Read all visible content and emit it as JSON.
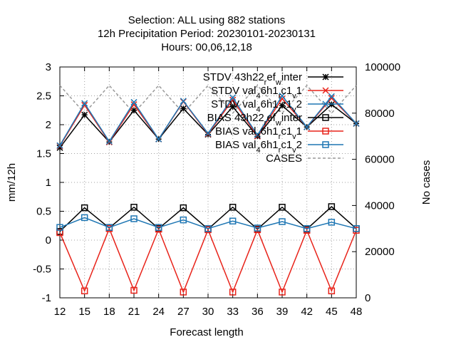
{
  "chart_data": {
    "type": "line",
    "title_lines": [
      "Selection: ALL using    882 stations",
      "12h Precipitation    Period: 20230101-20230131",
      "Hours:  00,06,12,18"
    ],
    "xlabel": "Forecast length",
    "ylabel": "mm/12h",
    "y2label": "No cases",
    "x": [
      12,
      15,
      18,
      21,
      24,
      27,
      30,
      33,
      36,
      39,
      42,
      45,
      48
    ],
    "xlim": [
      12,
      48
    ],
    "ylim": [
      -1,
      3
    ],
    "y2lim": [
      0,
      100000
    ],
    "x_ticks": [
      "12",
      "15",
      "18",
      "21",
      "24",
      "27",
      "30",
      "33",
      "36",
      "39",
      "42",
      "45",
      "48"
    ],
    "y_ticks": [
      "-1",
      "-0.5",
      "0",
      "0.5",
      "1",
      "1.5",
      "2",
      "2.5",
      "3"
    ],
    "y2_ticks": [
      "0",
      "20000",
      "40000",
      "60000",
      "80000",
      "100000"
    ],
    "grid": true,
    "legend_position": "top-right",
    "series": [
      {
        "legend_parts": [
          "STDV 43h22",
          "r",
          "ef",
          "w",
          "inter"
        ],
        "marker": "star",
        "color": "#000000",
        "axis": "y1",
        "values": [
          1.6,
          2.17,
          1.7,
          2.25,
          1.75,
          2.28,
          1.83,
          2.31,
          1.8,
          2.33,
          1.96,
          2.35,
          2.02
        ]
      },
      {
        "legend_parts": [
          "STDV val",
          "4",
          "6h1",
          "r",
          "c1",
          "v",
          "1"
        ],
        "marker": "x",
        "color": "#e8231a",
        "axis": "y1",
        "values": [
          1.63,
          2.34,
          1.7,
          2.35,
          1.75,
          2.4,
          1.84,
          2.43,
          1.8,
          2.45,
          1.96,
          2.46,
          2.02
        ]
      },
      {
        "legend_parts": [
          "STDV val",
          "4",
          "6h1",
          "r",
          "c1",
          "v",
          "2"
        ],
        "marker": "x",
        "color": "#1f77b4",
        "axis": "y1",
        "values": [
          1.64,
          2.37,
          1.71,
          2.39,
          1.75,
          2.41,
          1.85,
          2.47,
          1.82,
          2.5,
          1.96,
          2.49,
          2.02
        ]
      },
      {
        "legend_parts": [
          "BIAS 43h22",
          "r",
          "ef",
          "w",
          "inter"
        ],
        "marker": "square",
        "color": "#000000",
        "axis": "y1",
        "values": [
          0.15,
          0.56,
          0.21,
          0.57,
          0.2,
          0.56,
          0.19,
          0.57,
          0.19,
          0.57,
          0.19,
          0.58,
          0.2
        ]
      },
      {
        "legend_parts": [
          "BIAS val",
          "4",
          "6h1",
          "r",
          "c1",
          "v",
          "1"
        ],
        "marker": "square",
        "color": "#e8231a",
        "axis": "y1",
        "values": [
          0.13,
          -0.88,
          0.2,
          -0.87,
          0.19,
          -0.9,
          0.18,
          -0.9,
          0.18,
          -0.9,
          0.17,
          -0.88,
          0.17
        ]
      },
      {
        "legend_parts": [
          "BIAS val",
          "4",
          "6h1",
          "r",
          "c1",
          "v",
          "2"
        ],
        "marker": "square",
        "color": "#1f77b4",
        "axis": "y1",
        "values": [
          0.22,
          0.39,
          0.22,
          0.37,
          0.22,
          0.35,
          0.2,
          0.33,
          0.21,
          0.32,
          0.2,
          0.31,
          0.2
        ]
      },
      {
        "legend_parts": [
          "CASES"
        ],
        "marker": "none",
        "color": "#999999",
        "dashed": true,
        "axis": "y2",
        "values": [
          92000,
          80000,
          92000,
          80000,
          92000,
          80000,
          92000,
          80000,
          92000,
          80000,
          92000,
          80000,
          92000
        ]
      }
    ]
  }
}
